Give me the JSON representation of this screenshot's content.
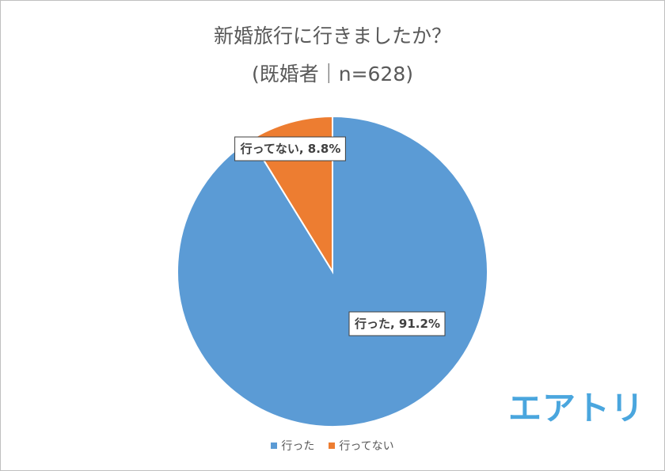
{
  "chart_data": {
    "type": "pie",
    "title": "新婚旅行に行きましたか？",
    "subtitle": "(既婚者｜n=628)",
    "slices": [
      {
        "label": "行った",
        "value": 91.2,
        "color": "#5b9bd5",
        "data_label": "行った, 91.2%"
      },
      {
        "label": "行ってない",
        "value": 8.8,
        "color": "#ed7d31",
        "data_label": "行ってない, 8.8%"
      }
    ],
    "legend": {
      "position": "bottom",
      "items": [
        "行った",
        "行ってない"
      ]
    }
  },
  "logo": {
    "text": "エアトリ",
    "color": "#4aa6de"
  }
}
